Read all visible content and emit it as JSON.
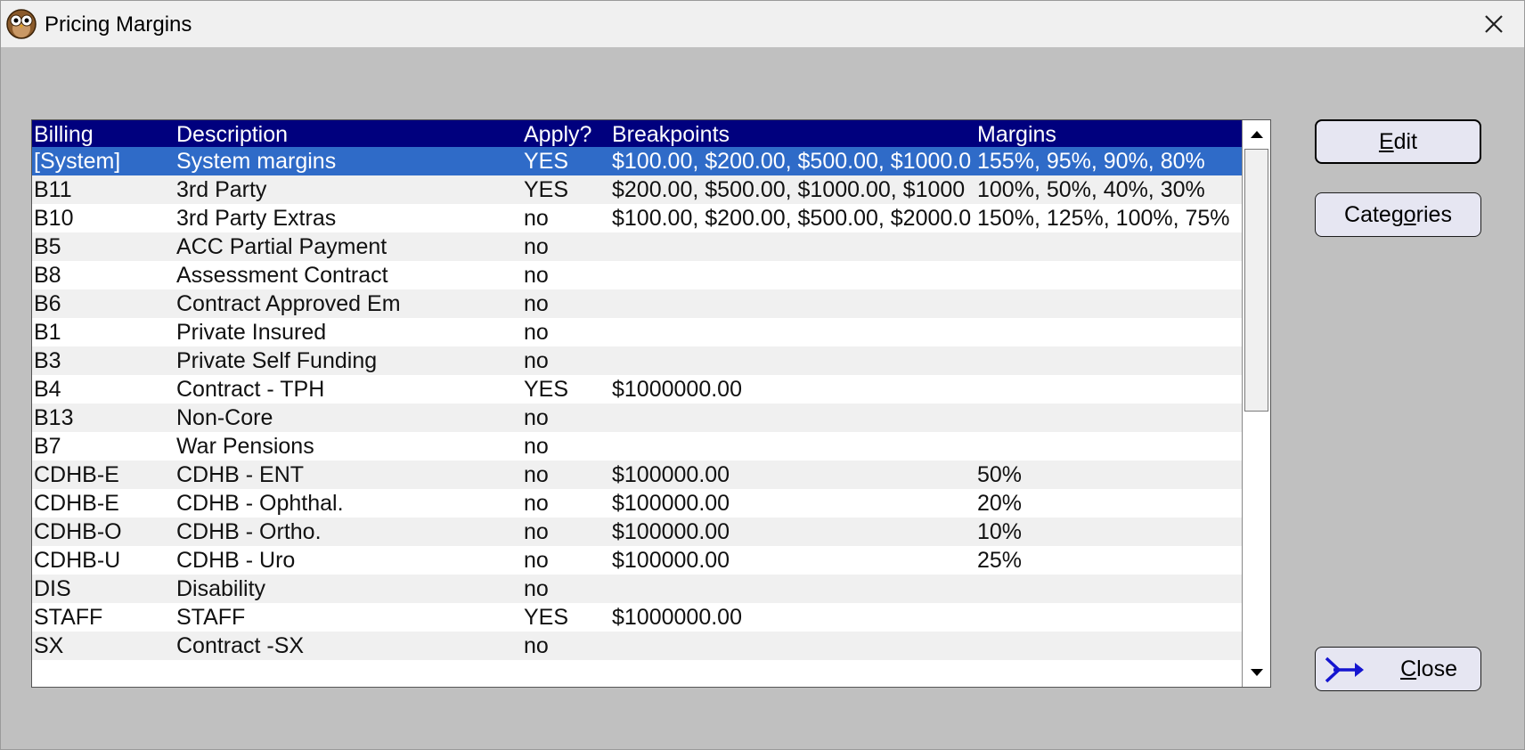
{
  "window": {
    "title": "Pricing Margins"
  },
  "icons": {
    "app": "owl-icon",
    "close": "close-icon",
    "scroll_up": "arrow-up-icon",
    "scroll_down": "arrow-down-icon",
    "close_button": "arrow-exit-icon"
  },
  "table": {
    "columns": [
      "Billing",
      "Description",
      "Apply?",
      "Breakpoints",
      "Margins"
    ],
    "rows": [
      {
        "billing": "[System]",
        "description": "System margins",
        "apply": "YES",
        "breakpoints": "$100.00, $200.00, $500.00, $1000.0",
        "margins": "155%, 95%, 90%, 80%",
        "selected": true
      },
      {
        "billing": "B11",
        "description": "3rd  Party",
        "apply": "YES",
        "breakpoints": "$200.00, $500.00, $1000.00, $1000",
        "margins": "100%, 50%, 40%, 30%"
      },
      {
        "billing": "B10",
        "description": "3rd Party Extras",
        "apply": "no",
        "breakpoints": "$100.00, $200.00, $500.00, $2000.0",
        "margins": "150%, 125%, 100%, 75%"
      },
      {
        "billing": "B5",
        "description": "ACC Partial Payment",
        "apply": "no",
        "breakpoints": "",
        "margins": ""
      },
      {
        "billing": "B8",
        "description": "Assessment Contract",
        "apply": "no",
        "breakpoints": "",
        "margins": ""
      },
      {
        "billing": "B6",
        "description": "Contract Approved Em",
        "apply": "no",
        "breakpoints": "",
        "margins": ""
      },
      {
        "billing": "B1",
        "description": "Private Insured",
        "apply": "no",
        "breakpoints": "",
        "margins": ""
      },
      {
        "billing": "B3",
        "description": "Private Self Funding",
        "apply": "no",
        "breakpoints": "",
        "margins": ""
      },
      {
        "billing": "B4",
        "description": "Contract - TPH",
        "apply": "YES",
        "breakpoints": "$1000000.00",
        "margins": ""
      },
      {
        "billing": "B13",
        "description": "Non-Core",
        "apply": "no",
        "breakpoints": "",
        "margins": ""
      },
      {
        "billing": "B7",
        "description": "War Pensions",
        "apply": "no",
        "breakpoints": "",
        "margins": ""
      },
      {
        "billing": "CDHB-E",
        "description": "CDHB - ENT",
        "apply": "no",
        "breakpoints": "$100000.00",
        "margins": "50%"
      },
      {
        "billing": "CDHB-E",
        "description": "CDHB - Ophthal.",
        "apply": "no",
        "breakpoints": "$100000.00",
        "margins": "20%"
      },
      {
        "billing": "CDHB-O",
        "description": "CDHB - Ortho.",
        "apply": "no",
        "breakpoints": "$100000.00",
        "margins": "10%"
      },
      {
        "billing": "CDHB-U",
        "description": "CDHB - Uro",
        "apply": "no",
        "breakpoints": "$100000.00",
        "margins": "25%"
      },
      {
        "billing": "DIS",
        "description": "Disability",
        "apply": "no",
        "breakpoints": "",
        "margins": ""
      },
      {
        "billing": "STAFF",
        "description": "STAFF",
        "apply": "YES",
        "breakpoints": "$1000000.00",
        "margins": ""
      },
      {
        "billing": "SX",
        "description": "Contract -SX",
        "apply": "no",
        "breakpoints": "",
        "margins": ""
      }
    ]
  },
  "buttons": {
    "edit": {
      "mnemonic": "E",
      "rest": "dit"
    },
    "categories": {
      "pre": "Categ",
      "mnemonic": "o",
      "post": "ries"
    },
    "close": {
      "mnemonic": "C",
      "rest": "lose"
    }
  }
}
